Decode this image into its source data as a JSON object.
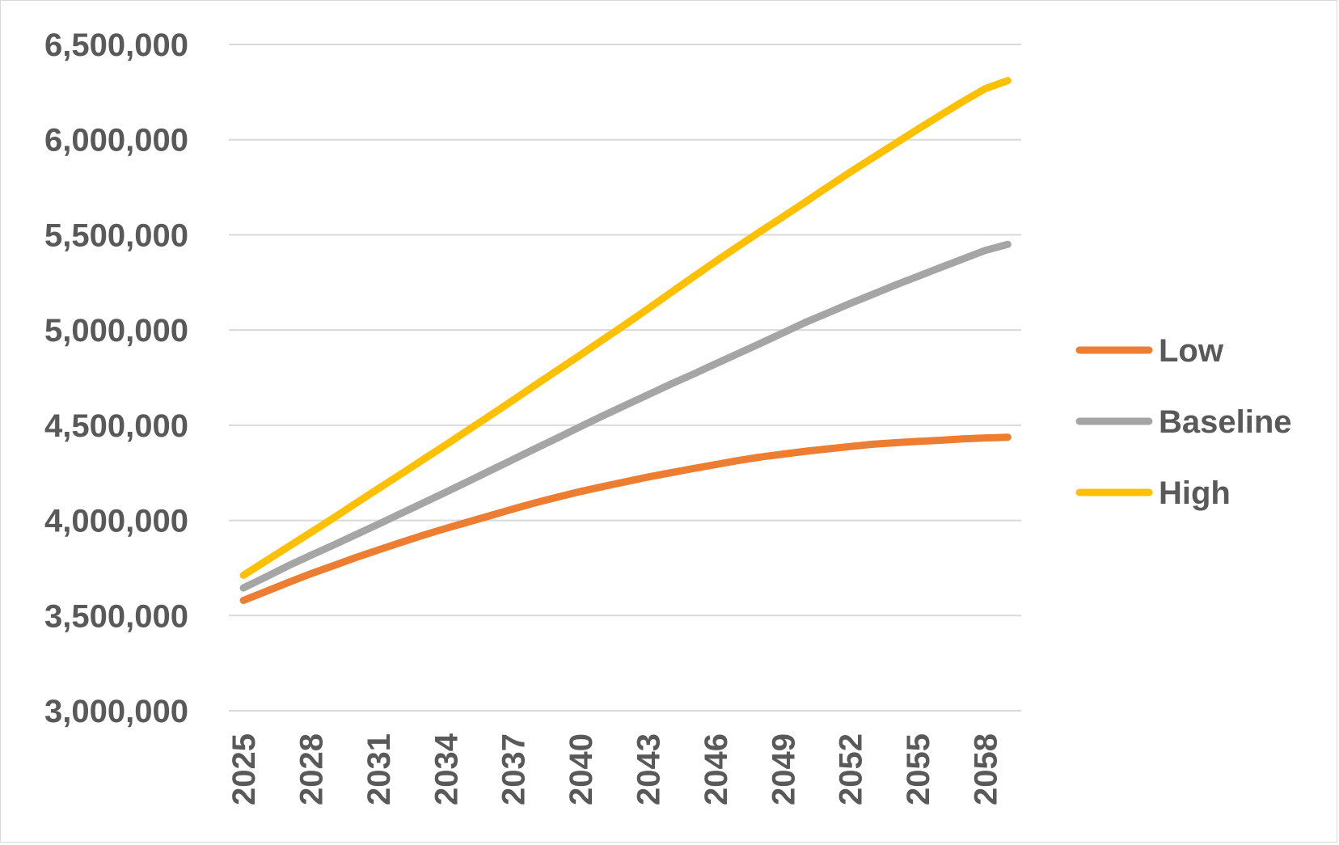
{
  "chart_data": {
    "type": "line",
    "title": "",
    "xlabel": "",
    "ylabel": "",
    "ylim": [
      3000000,
      6500000
    ],
    "yticks": [
      3000000,
      3500000,
      4000000,
      4500000,
      5000000,
      5500000,
      6000000,
      6500000
    ],
    "ytick_labels": [
      "3,000,000",
      "3,500,000",
      "4,000,000",
      "4,500,000",
      "5,000,000",
      "5,500,000",
      "6,000,000",
      "6,500,000"
    ],
    "xlim": [
      2025,
      2059
    ],
    "xticks": [
      2025,
      2028,
      2031,
      2034,
      2037,
      2040,
      2043,
      2046,
      2049,
      2052,
      2055,
      2058
    ],
    "xtick_labels": [
      "2025",
      "2028",
      "2031",
      "2034",
      "2037",
      "2040",
      "2043",
      "2046",
      "2049",
      "2052",
      "2055",
      "2058"
    ],
    "grid": "horizontal",
    "legend_position": "right",
    "x": [
      2025,
      2026,
      2027,
      2028,
      2029,
      2030,
      2031,
      2032,
      2033,
      2034,
      2035,
      2036,
      2037,
      2038,
      2039,
      2040,
      2041,
      2042,
      2043,
      2044,
      2045,
      2046,
      2047,
      2048,
      2049,
      2050,
      2051,
      2052,
      2053,
      2054,
      2055,
      2056,
      2057,
      2058,
      2059
    ],
    "series": [
      {
        "name": "Low",
        "color": "#ED7D31",
        "values": [
          3580000,
          3627000,
          3674000,
          3720000,
          3762000,
          3805000,
          3845000,
          3884000,
          3922000,
          3958000,
          3992000,
          4026000,
          4060000,
          4093000,
          4123000,
          4152000,
          4178000,
          4203000,
          4228000,
          4250000,
          4272000,
          4293000,
          4314000,
          4333000,
          4348000,
          4363000,
          4376000,
          4388000,
          4400000,
          4408000,
          4415000,
          4421000,
          4428000,
          4433000,
          4437000
        ]
      },
      {
        "name": "Baseline",
        "color": "#A5A5A5",
        "values": [
          3645000,
          3703000,
          3762000,
          3817000,
          3870000,
          3925000,
          3980000,
          4036000,
          4092000,
          4148000,
          4205000,
          4263000,
          4320000,
          4378000,
          4435000,
          4493000,
          4550000,
          4605000,
          4660000,
          4715000,
          4768000,
          4822000,
          4876000,
          4930000,
          4985000,
          5040000,
          5090000,
          5140000,
          5188000,
          5236000,
          5282000,
          5328000,
          5373000,
          5418000,
          5450000
        ]
      },
      {
        "name": "High",
        "color": "#FFC000",
        "values": [
          3712000,
          3787000,
          3862000,
          3937000,
          4012000,
          4090000,
          4167000,
          4243000,
          4320000,
          4397000,
          4475000,
          4553000,
          4632000,
          4712000,
          4791000,
          4870000,
          4950000,
          5030000,
          5112000,
          5195000,
          5278000,
          5360000,
          5440000,
          5518000,
          5595000,
          5673000,
          5752000,
          5830000,
          5905000,
          5980000,
          6055000,
          6128000,
          6200000,
          6268000,
          6310000
        ]
      }
    ]
  }
}
